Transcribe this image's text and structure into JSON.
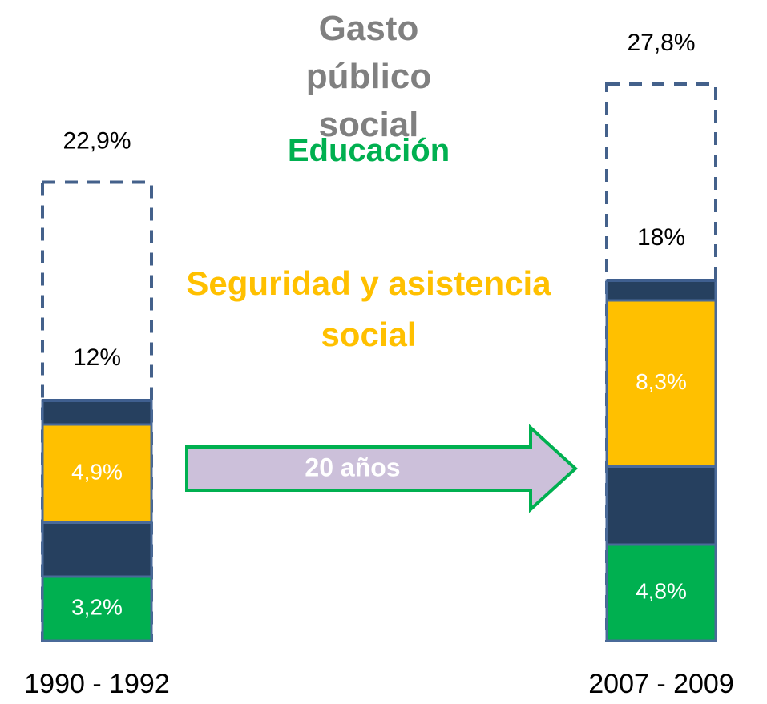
{
  "chart_data": {
    "type": "bar",
    "categories": [
      "1990 - 1992",
      "2007 - 2009"
    ],
    "ylim": [
      0,
      32
    ],
    "series": [
      {
        "name": "Gasto público social",
        "color": "#44618b",
        "outline": true,
        "values": [
          22.9,
          27.8
        ],
        "value_labels": [
          "22,9%",
          "27,8%"
        ]
      },
      {
        "color": "#3f5f8f",
        "mark": "line",
        "values": [
          12,
          18
        ],
        "value_labels": [
          "12%",
          "18%"
        ]
      },
      {
        "name": "Educación",
        "color": "#00b050",
        "stacked": true,
        "values": [
          3.2,
          4.8
        ],
        "value_labels": [
          "3,2%",
          "4,8%"
        ]
      },
      {
        "color": "#26405f",
        "stacked": true,
        "values": [
          2.7,
          3.9
        ]
      },
      {
        "name": "Seguridad y asistencia social",
        "color": "#ffc000",
        "stacked": true,
        "values": [
          4.9,
          8.3
        ],
        "value_labels": [
          "4,9%",
          "8,3%"
        ]
      },
      {
        "color": "#26405f",
        "stacked": true,
        "values": [
          1.2,
          1.0
        ]
      }
    ],
    "annotations": [
      "20 años"
    ]
  }
}
